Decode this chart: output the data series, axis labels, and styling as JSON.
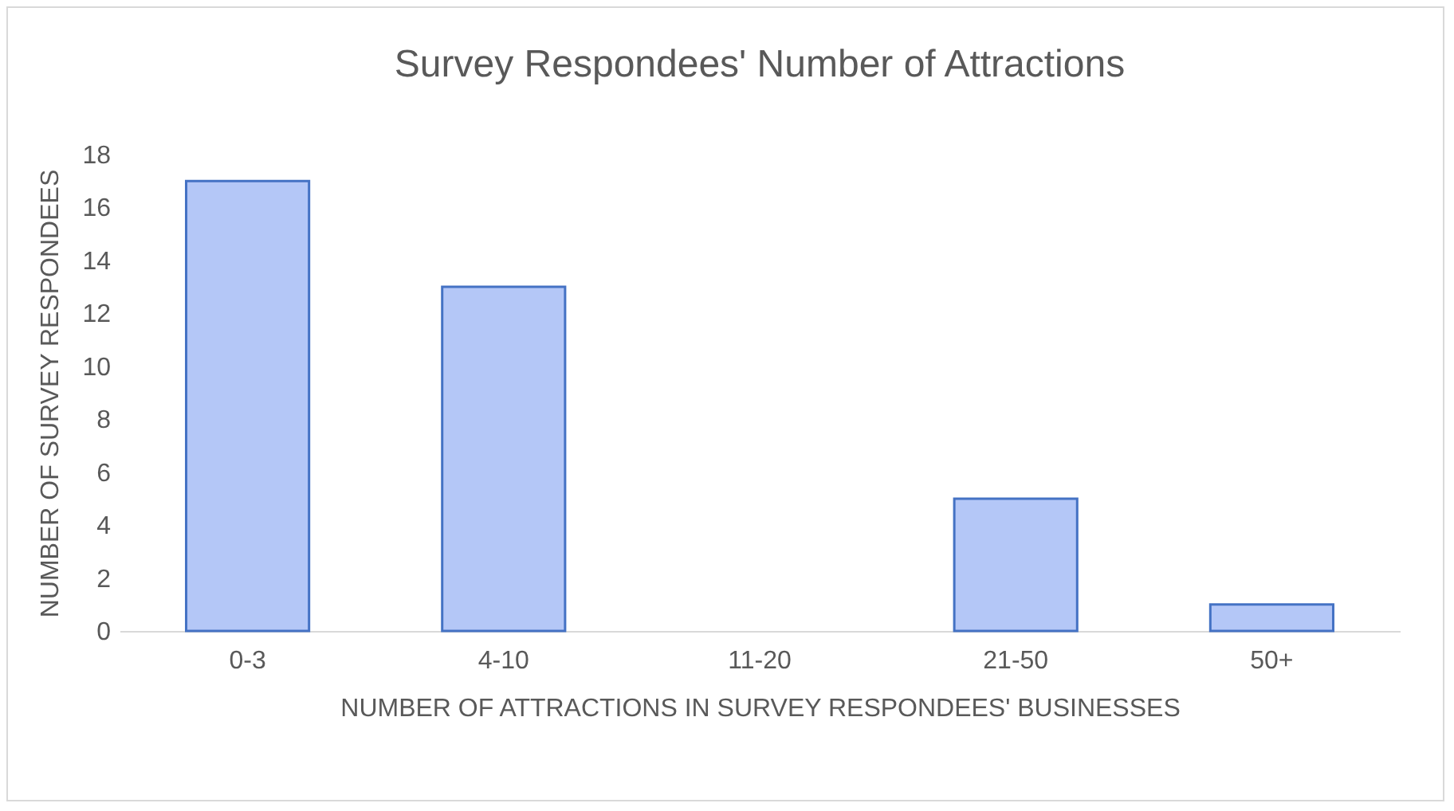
{
  "chart_data": {
    "type": "bar",
    "title": "Survey Respondees' Number of Attractions",
    "xlabel": "NUMBER OF ATTRACTIONS IN SURVEY RESPONDEES' BUSINESSES",
    "ylabel": "NUMBER OF SURVEY RESPONDEES",
    "categories": [
      "0-3",
      "4-10",
      "11-20",
      "21-50",
      "50+"
    ],
    "values": [
      17,
      13,
      0,
      5,
      1
    ],
    "color": "#b4c7f7",
    "ylim": [
      0,
      18
    ],
    "yticks": [
      0,
      2,
      4,
      6,
      8,
      10,
      12,
      14,
      16,
      18
    ],
    "grid": false
  }
}
